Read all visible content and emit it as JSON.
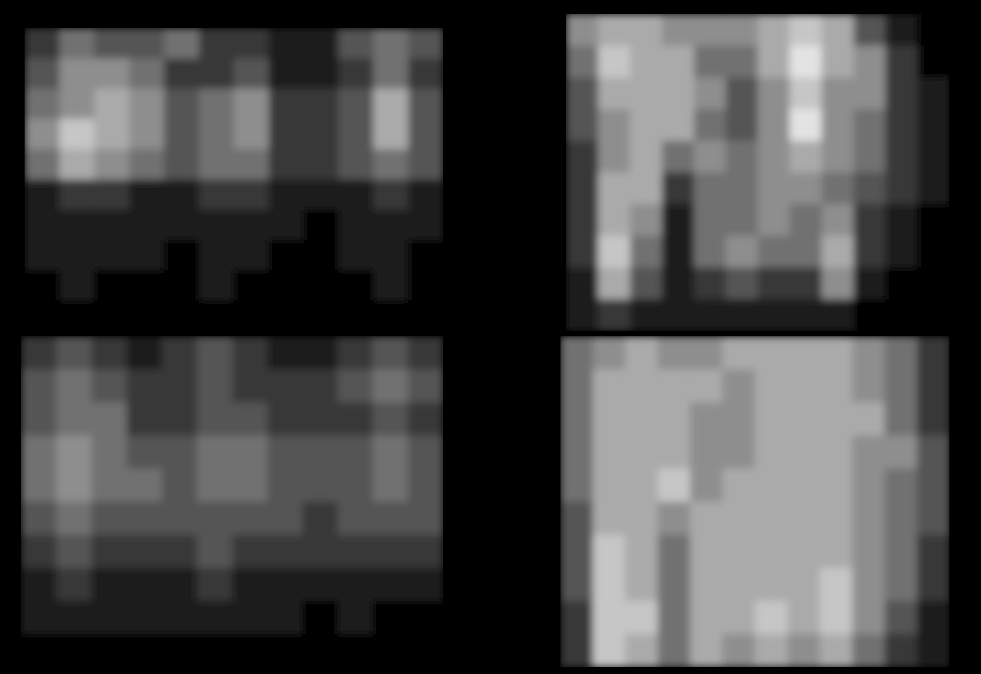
{
  "chart_data": [
    {
      "type": "heatmap",
      "tick_labels": false,
      "color_range": [
        0,
        9
      ],
      "cells": [
        [
          2,
          4,
          3,
          3,
          4,
          2,
          2,
          1,
          1,
          3,
          4,
          3
        ],
        [
          3,
          5,
          5,
          4,
          2,
          2,
          3,
          1,
          1,
          2,
          4,
          2
        ],
        [
          4,
          5,
          6,
          5,
          3,
          4,
          5,
          2,
          2,
          3,
          6,
          3
        ],
        [
          5,
          7,
          6,
          5,
          3,
          4,
          5,
          2,
          2,
          3,
          6,
          3
        ],
        [
          4,
          6,
          5,
          4,
          3,
          4,
          4,
          2,
          2,
          3,
          4,
          3
        ],
        [
          1,
          2,
          2,
          1,
          1,
          2,
          2,
          1,
          1,
          1,
          2,
          1
        ],
        [
          1,
          1,
          1,
          1,
          1,
          1,
          1,
          1,
          0,
          1,
          1,
          1
        ],
        [
          1,
          1,
          1,
          1,
          0,
          1,
          1,
          0,
          0,
          1,
          1,
          0
        ],
        [
          0,
          1,
          0,
          0,
          0,
          1,
          0,
          0,
          0,
          0,
          1,
          0
        ],
        [
          0,
          0,
          0,
          0,
          0,
          0,
          0,
          0,
          0,
          0,
          0,
          0
        ]
      ]
    },
    {
      "type": "heatmap",
      "tick_labels": false,
      "color_range": [
        0,
        9
      ],
      "cells": [
        [
          5,
          6,
          6,
          5,
          5,
          5,
          6,
          7,
          6,
          3,
          1,
          0
        ],
        [
          4,
          7,
          6,
          6,
          4,
          4,
          6,
          8,
          6,
          5,
          2,
          0
        ],
        [
          3,
          6,
          6,
          6,
          5,
          3,
          5,
          7,
          5,
          5,
          2,
          1
        ],
        [
          3,
          5,
          6,
          6,
          4,
          3,
          5,
          8,
          5,
          4,
          2,
          1
        ],
        [
          2,
          5,
          6,
          4,
          5,
          4,
          5,
          6,
          5,
          4,
          2,
          1
        ],
        [
          2,
          6,
          6,
          2,
          4,
          4,
          5,
          5,
          4,
          3,
          2,
          1
        ],
        [
          2,
          6,
          5,
          1,
          4,
          4,
          5,
          4,
          5,
          2,
          1,
          0
        ],
        [
          2,
          7,
          4,
          1,
          4,
          5,
          4,
          4,
          6,
          2,
          1,
          0
        ],
        [
          1,
          6,
          3,
          1,
          2,
          3,
          2,
          2,
          5,
          1,
          0,
          0
        ],
        [
          1,
          2,
          1,
          1,
          1,
          1,
          1,
          1,
          1,
          0,
          0,
          0
        ]
      ]
    },
    {
      "type": "heatmap",
      "tick_labels": false,
      "color_range": [
        0,
        9
      ],
      "cells": [
        [
          2,
          3,
          2,
          1,
          2,
          3,
          2,
          1,
          1,
          2,
          3,
          2
        ],
        [
          3,
          4,
          3,
          2,
          2,
          3,
          2,
          2,
          2,
          3,
          4,
          3
        ],
        [
          3,
          4,
          4,
          2,
          2,
          3,
          3,
          2,
          2,
          2,
          3,
          2
        ],
        [
          4,
          5,
          4,
          3,
          3,
          4,
          4,
          3,
          3,
          3,
          4,
          3
        ],
        [
          4,
          5,
          4,
          4,
          3,
          4,
          4,
          3,
          3,
          3,
          4,
          3
        ],
        [
          3,
          4,
          3,
          3,
          3,
          3,
          3,
          3,
          2,
          3,
          3,
          3
        ],
        [
          2,
          3,
          2,
          2,
          2,
          3,
          2,
          2,
          2,
          2,
          2,
          2
        ],
        [
          1,
          2,
          1,
          1,
          1,
          2,
          1,
          1,
          1,
          1,
          1,
          1
        ],
        [
          1,
          1,
          1,
          1,
          1,
          1,
          1,
          1,
          0,
          1,
          0,
          0
        ],
        [
          0,
          0,
          0,
          0,
          0,
          0,
          0,
          0,
          0,
          0,
          0,
          0
        ]
      ]
    },
    {
      "type": "heatmap",
      "tick_labels": false,
      "color_range": [
        0,
        9
      ],
      "cells": [
        [
          4,
          5,
          6,
          5,
          5,
          6,
          6,
          6,
          6,
          5,
          4,
          2
        ],
        [
          4,
          6,
          6,
          6,
          6,
          5,
          6,
          6,
          6,
          5,
          4,
          2
        ],
        [
          4,
          6,
          6,
          6,
          5,
          5,
          6,
          6,
          6,
          6,
          4,
          2
        ],
        [
          4,
          6,
          6,
          6,
          5,
          5,
          6,
          6,
          6,
          5,
          5,
          3
        ],
        [
          4,
          6,
          6,
          7,
          5,
          6,
          6,
          6,
          6,
          5,
          4,
          3
        ],
        [
          3,
          6,
          6,
          5,
          6,
          6,
          6,
          6,
          6,
          5,
          4,
          3
        ],
        [
          3,
          7,
          6,
          4,
          6,
          6,
          6,
          6,
          6,
          5,
          4,
          2
        ],
        [
          3,
          7,
          6,
          4,
          6,
          6,
          6,
          6,
          7,
          5,
          4,
          2
        ],
        [
          2,
          7,
          7,
          4,
          6,
          6,
          7,
          6,
          7,
          5,
          3,
          1
        ],
        [
          2,
          7,
          6,
          4,
          6,
          5,
          6,
          5,
          6,
          4,
          2,
          1
        ]
      ]
    }
  ]
}
